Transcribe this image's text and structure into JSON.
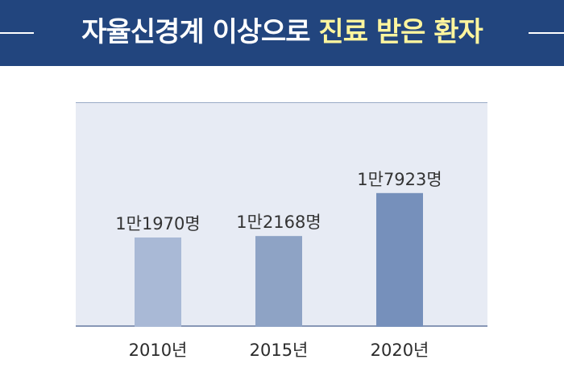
{
  "header": {
    "title_main": "자율신경계 이상으로",
    "title_highlight": "진료 받은 환자",
    "background_color": "#22457e",
    "highlight_color": "#fff59e"
  },
  "chart_data": {
    "type": "bar",
    "title": "자율신경계 이상으로 진료 받은 환자",
    "categories": [
      "2010년",
      "2015년",
      "2020년"
    ],
    "values": [
      11970,
      12168,
      17923
    ],
    "data_labels": [
      "1만1970명",
      "1만2168명",
      "1만7923명"
    ],
    "bar_colors": [
      "#a9b9d6",
      "#8ea3c5",
      "#7690bb"
    ],
    "plot_background": "#e7ebf4",
    "grid": false,
    "legend": "none"
  }
}
